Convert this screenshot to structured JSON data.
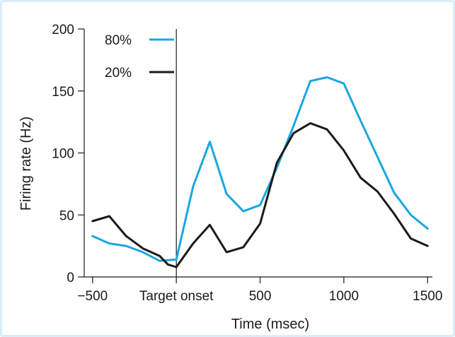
{
  "chart_data": {
    "type": "line",
    "title": "",
    "xlabel": "Time (msec)",
    "ylabel": "Firing rate (Hz)",
    "xlim": [
      -550,
      1520
    ],
    "ylim": [
      0,
      200
    ],
    "x_ticks": [
      {
        "value": -500,
        "label": "−500"
      },
      {
        "value": 500,
        "label": "500"
      },
      {
        "value": 1000,
        "label": "1000"
      },
      {
        "value": 1500,
        "label": "1500"
      }
    ],
    "y_ticks": [
      0,
      50,
      100,
      150,
      200
    ],
    "grid": false,
    "legend": "top-left",
    "annotation": {
      "x": 0,
      "label": "Target onset"
    },
    "series": [
      {
        "name": "80%",
        "color": "#1aa6e0",
        "x": [
          -500,
          -400,
          -300,
          -200,
          -100,
          0,
          100,
          200,
          300,
          400,
          500,
          600,
          700,
          800,
          900,
          1000,
          1100,
          1200,
          1300,
          1400,
          1500
        ],
        "y": [
          33,
          27,
          25,
          20,
          13,
          14,
          73,
          109,
          67,
          53,
          58,
          88,
          122,
          158,
          161,
          156,
          126,
          97,
          68,
          50,
          39
        ]
      },
      {
        "name": "20%",
        "color": "#1a1a1a",
        "x": [
          -500,
          -400,
          -300,
          -200,
          -100,
          -50,
          0,
          100,
          200,
          300,
          400,
          500,
          600,
          700,
          800,
          900,
          1000,
          1100,
          1200,
          1300,
          1400,
          1500
        ],
        "y": [
          45,
          49,
          33,
          23,
          17,
          10,
          8,
          27,
          42,
          20,
          24,
          43,
          92,
          116,
          124,
          119,
          102,
          80,
          69,
          51,
          31,
          25
        ]
      }
    ]
  }
}
